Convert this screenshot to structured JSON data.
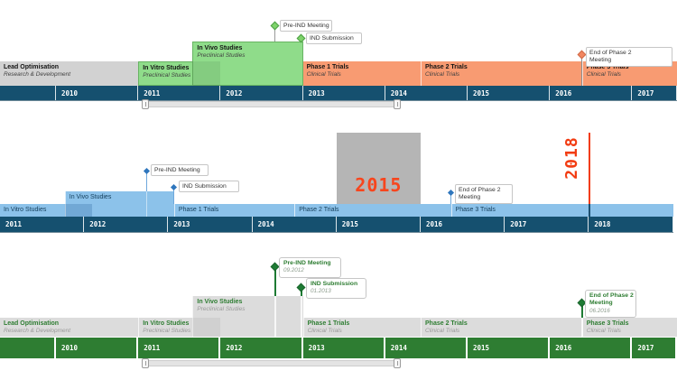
{
  "page": {
    "background": "#ffffff"
  },
  "colors": {
    "axis_blue": "#15506f",
    "axis_green": "#2e7d32",
    "bar_gray_top": "#d2d2d2",
    "bar_green": "#8fdc8a",
    "bar_orange": "#f89b72",
    "bar_blue": "#8cc2ea",
    "bar_gray_bottom": "#dcdcdc",
    "milestone_green": "#7ed36a",
    "milestone_orange": "#f28660",
    "milestone_blue": "#2e76bd",
    "milestone_dark_green": "#1e7b34",
    "annotation_red": "#f23c12",
    "highlight_gray": "#b5b5b5"
  },
  "chart_data": [
    {
      "type": "timeline",
      "position": "top",
      "axis": {
        "years": [
          "2010",
          "2011",
          "2012",
          "2013",
          "2014",
          "2015",
          "2016",
          "2017"
        ],
        "leading_blank": true
      },
      "tasks": [
        {
          "label": "Lead Optimisation",
          "sublabel": "Research & Development",
          "start": 2009.32,
          "end": 2011.0,
          "fill": "#d2d2d2"
        },
        {
          "label": "In Vitro Studies",
          "sublabel": "Preclinical Studies",
          "start": 2011.0,
          "end": 2012.0,
          "fill": "#8fdc8a",
          "border": "#68b463"
        },
        {
          "label": "In Vivo Studies",
          "sublabel": "Preclinical Studies",
          "start": 2011.66,
          "end": 2013.0,
          "fill": "#8fdc8a",
          "border": "#68b463",
          "tall": true
        },
        {
          "label": "Phase 1 Trials",
          "sublabel": "Clinical Trials",
          "start": 2013.0,
          "end": 2014.43,
          "fill": "#f89b72"
        },
        {
          "label": "Phase 2 Trials",
          "sublabel": "Clinical Trials",
          "start": 2014.43,
          "end": 2016.39,
          "fill": "#f89b72",
          "sep": true
        },
        {
          "label": "Phase 3 Trials",
          "sublabel": "Clinical Trials",
          "start": 2016.39,
          "end": 2017.6,
          "fill": "#f89b72",
          "sep": true
        }
      ],
      "milestones": [
        {
          "lines": [
            "Pre-IND Meeting"
          ],
          "time": 2012.66,
          "fill": "#7ed36a",
          "border": "#4c9e44"
        },
        {
          "lines": [
            "IND Submission"
          ],
          "time": 2012.98,
          "fill": "#7ed36a",
          "border": "#4c9e44"
        },
        {
          "lines": [
            "End of Phase 2",
            "Meeting"
          ],
          "time": 2016.39,
          "fill": "#f28660",
          "border": "#cf6845"
        }
      ],
      "has_scrollbar": true
    },
    {
      "type": "timeline",
      "position": "middle",
      "axis": {
        "years": [
          "2011",
          "2012",
          "2013",
          "2014",
          "2015",
          "2016",
          "2017",
          "2018"
        ],
        "leading_blank": false
      },
      "tasks": [
        {
          "label": "In Vitro Studies",
          "start": 2011.0,
          "end": 2012.1,
          "fill": "#8cc2ea"
        },
        {
          "label": "In Vivo Studies",
          "start": 2011.77,
          "end": 2013.07,
          "fill": "#8cc2ea",
          "tall": true,
          "sep": true
        },
        {
          "label": "Phase 1 Trials",
          "start": 2013.07,
          "end": 2014.5,
          "fill": "#8cc2ea",
          "sep": true
        },
        {
          "label": "Phase 2 Trials",
          "start": 2014.5,
          "end": 2016.36,
          "fill": "#8cc2ea",
          "sep": true
        },
        {
          "label": "Phase 3 Trials",
          "start": 2016.36,
          "end": 2019.0,
          "fill": "#8cc2ea",
          "sep": true
        }
      ],
      "milestones": [
        {
          "lines": [
            "Pre-IND Meeting"
          ],
          "time": 2012.74,
          "fill": "#2e76bd"
        },
        {
          "lines": [
            "IND Submission"
          ],
          "time": 2013.07,
          "fill": "#2e76bd"
        },
        {
          "lines": [
            "End of Phase 2",
            "Meeting"
          ],
          "time": 2016.36,
          "fill": "#2e76bd"
        }
      ],
      "annotations": {
        "highlighted_year": {
          "label": "2015",
          "time": 2015
        },
        "flagged_year": {
          "label": "2018",
          "time": 2018
        }
      },
      "has_scrollbar": false
    },
    {
      "type": "timeline",
      "position": "bottom",
      "axis": {
        "years": [
          "2010",
          "2011",
          "2012",
          "2013",
          "2014",
          "2015",
          "2016",
          "2017"
        ],
        "leading_blank": true
      },
      "tasks": [
        {
          "label": "Lead Optimisation",
          "sublabel": "Research & Development",
          "start": 2009.32,
          "end": 2011.0,
          "fill": "#dcdcdc"
        },
        {
          "label": "In Vitro Studies",
          "sublabel": "Preclinical Studies",
          "start": 2011.0,
          "end": 2012.0,
          "fill": "#dcdcdc",
          "sep": true
        },
        {
          "label": "In Vivo Studies",
          "sublabel": "Preclinical Studies",
          "start": 2011.66,
          "end": 2013.0,
          "fill": "#dcdcdc",
          "tall": true,
          "sep": true
        },
        {
          "label": "Phase 1 Trials",
          "sublabel": "Clinical Trials",
          "start": 2013.0,
          "end": 2014.43,
          "fill": "#dcdcdc",
          "sep": true
        },
        {
          "label": "Phase 2 Trials",
          "sublabel": "Clinical Trials",
          "start": 2014.43,
          "end": 2016.39,
          "fill": "#dcdcdc",
          "sep": true
        },
        {
          "label": "Phase 3 Trials",
          "sublabel": "Clinical Trials",
          "start": 2016.39,
          "end": 2017.6,
          "fill": "#dcdcdc",
          "sep": true
        }
      ],
      "milestones": [
        {
          "lines": [
            "Pre-IND Meeting"
          ],
          "date_label": "09.2012",
          "time": 2012.66,
          "fill": "#1e7b34",
          "border": "#17632a"
        },
        {
          "lines": [
            "IND Submission"
          ],
          "date_label": "01.2013",
          "time": 2012.98,
          "fill": "#1e7b34",
          "border": "#17632a"
        },
        {
          "lines": [
            "End of Phase 2",
            "Meeting"
          ],
          "date_label": "06.2016",
          "time": 2016.39,
          "fill": "#1e7b34",
          "border": "#17632a"
        }
      ],
      "has_scrollbar": true
    }
  ]
}
